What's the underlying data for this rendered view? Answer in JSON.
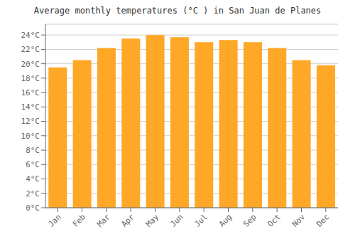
{
  "chart_data": {
    "type": "bar",
    "title": "Average monthly temperatures (°C ) in San Juan de Planes",
    "categories": [
      "Jan",
      "Feb",
      "Mar",
      "Apr",
      "May",
      "Jun",
      "Jul",
      "Aug",
      "Sep",
      "Oct",
      "Nov",
      "Dec"
    ],
    "values": [
      19.5,
      20.5,
      22.2,
      23.5,
      24.0,
      23.7,
      23.0,
      23.3,
      23.0,
      22.2,
      20.5,
      19.8
    ],
    "color": "#FFA726",
    "ylim": [
      0,
      25.5
    ],
    "yticks": [
      {
        "value": 0,
        "label": "0°C"
      },
      {
        "value": 2,
        "label": "2°C"
      },
      {
        "value": 4,
        "label": "4°C"
      },
      {
        "value": 6,
        "label": "6°C"
      },
      {
        "value": 8,
        "label": "8°C"
      },
      {
        "value": 10,
        "label": "10°C"
      },
      {
        "value": 12,
        "label": "12°C"
      },
      {
        "value": 14,
        "label": "14°C"
      },
      {
        "value": 16,
        "label": "16°C"
      },
      {
        "value": 18,
        "label": "18°C"
      },
      {
        "value": 20,
        "label": "20°C"
      },
      {
        "value": 22,
        "label": "22°C"
      },
      {
        "value": 24,
        "label": "24°C"
      }
    ],
    "grid": true
  }
}
